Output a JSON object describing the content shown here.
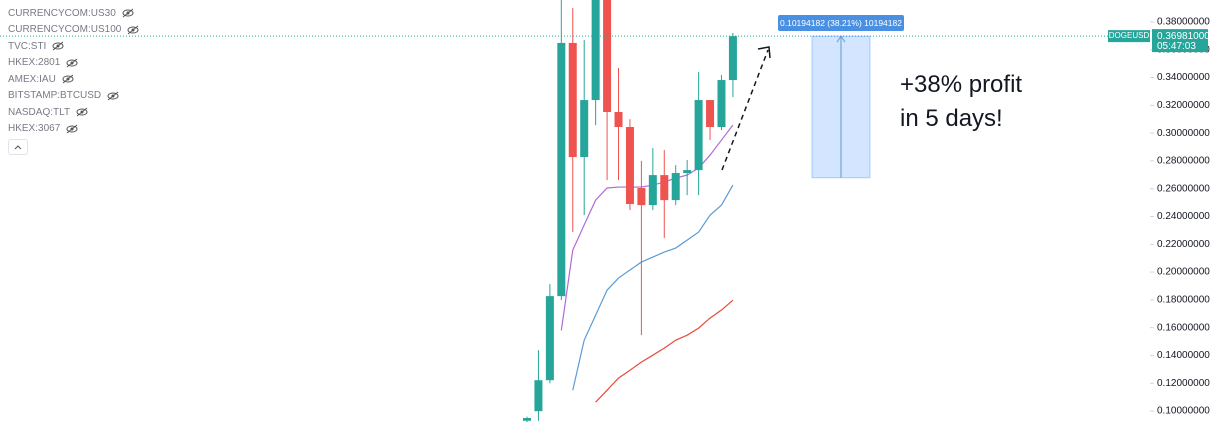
{
  "chart_data": {
    "type": "candlestick",
    "open": [
      0.093,
      0.0999,
      0.1222,
      0.1827,
      0.3649,
      0.2828,
      0.3238,
      0.4,
      0.3152,
      0.3044,
      0.2605,
      0.2482,
      0.2698,
      0.2518,
      0.2713,
      0.2734,
      0.3238,
      0.3044,
      0.3382
    ],
    "high": [
      0.096,
      0.1438,
      0.1914,
      0.405,
      0.39,
      0.367,
      0.41,
      0.405,
      0.3469,
      0.31,
      0.28,
      0.2893,
      0.2878,
      0.277,
      0.2806,
      0.344,
      0.3238,
      0.3418,
      0.3721
    ],
    "low": [
      0.092,
      0.093,
      0.12,
      0.1798,
      0.2288,
      0.241,
      0.3058,
      0.2662,
      0.2662,
      0.2446,
      0.1546,
      0.2446,
      0.2245,
      0.2482,
      0.2554,
      0.2554,
      0.295,
      0.3022,
      0.326
    ],
    "close": [
      0.095,
      0.1222,
      0.1827,
      0.3649,
      0.2828,
      0.3238,
      0.4,
      0.3152,
      0.3044,
      0.249,
      0.2482,
      0.2698,
      0.2518,
      0.2713,
      0.2734,
      0.3238,
      0.3044,
      0.3382,
      0.3698
    ],
    "up_color": "#26a69a",
    "down_color": "#ef5350",
    "moving_averages": [
      {
        "color": "#b26ad6",
        "values": [
          null,
          null,
          null,
          0.158,
          0.2158,
          0.234,
          0.2518,
          0.2605,
          0.2612,
          0.2612,
          0.2612,
          0.2626,
          0.2648,
          0.2677,
          0.2698,
          0.2749,
          0.2842,
          0.295,
          0.3058
        ]
      },
      {
        "color": "#5b9bd5",
        "values": [
          null,
          null,
          null,
          null,
          0.115,
          0.151,
          0.169,
          0.187,
          0.1957,
          0.2015,
          0.2072,
          0.2108,
          0.2144,
          0.2173,
          0.223,
          0.2288,
          0.241,
          0.2482,
          0.2626
        ]
      },
      {
        "color": "#e74c3c",
        "values": [
          null,
          null,
          null,
          null,
          null,
          null,
          0.1064,
          0.115,
          0.1237,
          0.1294,
          0.1352,
          0.1402,
          0.1453,
          0.151,
          0.1546,
          0.1597,
          0.1669,
          0.1727,
          0.1798
        ]
      }
    ],
    "ylim": [
      0.0914,
      0.3958
    ],
    "yticks": [
      {
        "value": 0.1,
        "label": "0.10000000"
      },
      {
        "value": 0.12,
        "label": "0.12000000"
      },
      {
        "value": 0.14,
        "label": "0.14000000"
      },
      {
        "value": 0.16,
        "label": "0.16000000"
      },
      {
        "value": 0.18,
        "label": "0.18000000"
      },
      {
        "value": 0.2,
        "label": "0.20000000"
      },
      {
        "value": 0.22,
        "label": "0.22000000"
      },
      {
        "value": 0.24,
        "label": "0.24000000"
      },
      {
        "value": 0.26,
        "label": "0.26000000"
      },
      {
        "value": 0.28,
        "label": "0.28000000"
      },
      {
        "value": 0.3,
        "label": "0.30000000"
      },
      {
        "value": 0.32,
        "label": "0.32000000"
      },
      {
        "value": 0.34,
        "label": "0.34000000"
      },
      {
        "value": 0.36,
        "label": "0.36000000"
      },
      {
        "value": 0.38,
        "label": "0.38000000"
      }
    ],
    "price_line": {
      "symbol": "DOGEUSD",
      "price": 0.36981,
      "price_label": "0.36981000",
      "countdown": "05:47:03"
    },
    "measure": {
      "label": "0.10194182 (38.21%) 10194182",
      "from": 0.26787,
      "to": 0.36981
    },
    "annotation": [
      "+38% profit",
      "in 5 days!"
    ],
    "symbols": [
      "CURRENCYCOM:US30",
      "CURRENCYCOM:US100",
      "TVC:STI",
      "HKEX:2801",
      "AMEX:IAU",
      "BITSTAMP:BTCUSD",
      "NASDAQ:TLT",
      "HKEX:3067"
    ]
  }
}
